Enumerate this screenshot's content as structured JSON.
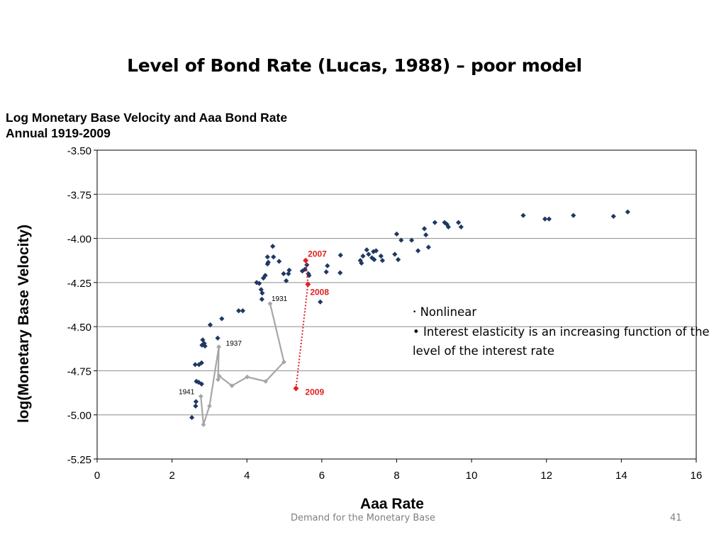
{
  "slide": {
    "title": "Level of Bond Rate (Lucas, 1988) – poor model",
    "footer": "Demand for the Monetary Base",
    "page_number": "41"
  },
  "notes": {
    "items": [
      "Nonlinear",
      "Interest elasticity is an increasing function of the level of the interest rate"
    ]
  },
  "chart_data": {
    "type": "scatter",
    "title_lines": [
      "Log Monetary Base Velocity and  Aaa Bond Rate",
      "Annual 1919-2009"
    ],
    "xlabel": "Aaa Rate",
    "ylabel": "log(Monetary Base Velocity)",
    "xlim": [
      0,
      16
    ],
    "ylim": [
      -5.25,
      -3.5
    ],
    "xticks": [
      "0",
      "2",
      "4",
      "6",
      "8",
      "10",
      "12",
      "14",
      "16"
    ],
    "yticks": [
      "-3.50",
      "-3.75",
      "-4.00",
      "-4.25",
      "-4.50",
      "-4.75",
      "-5.00",
      "-5.25"
    ],
    "grid": true,
    "colors": {
      "main": "#1f3864",
      "highlight": "#e02020",
      "path": "#a6a6a6",
      "grid": "#8c8c8c"
    },
    "series": [
      {
        "marker": "diamond",
        "points": [
          [
            11.38,
            -3.87
          ],
          [
            11.96,
            -3.89
          ],
          [
            12.07,
            -3.89
          ],
          [
            12.72,
            -3.87
          ],
          [
            13.79,
            -3.875
          ],
          [
            14.17,
            -3.85
          ],
          [
            9.02,
            -3.91
          ],
          [
            9.28,
            -3.91
          ],
          [
            9.34,
            -3.92
          ],
          [
            9.38,
            -3.935
          ],
          [
            9.65,
            -3.91
          ],
          [
            9.72,
            -3.935
          ],
          [
            8.0,
            -3.975
          ],
          [
            8.12,
            -4.01
          ],
          [
            8.4,
            -4.01
          ],
          [
            8.74,
            -3.945
          ],
          [
            8.78,
            -3.98
          ],
          [
            8.85,
            -4.05
          ],
          [
            8.57,
            -4.07
          ],
          [
            7.95,
            -4.09
          ],
          [
            8.04,
            -4.12
          ],
          [
            7.2,
            -4.065
          ],
          [
            7.38,
            -4.075
          ],
          [
            7.45,
            -4.07
          ],
          [
            7.1,
            -4.1
          ],
          [
            7.25,
            -4.09
          ],
          [
            7.34,
            -4.11
          ],
          [
            7.4,
            -4.12
          ],
          [
            7.58,
            -4.1
          ],
          [
            7.62,
            -4.125
          ],
          [
            7.03,
            -4.125
          ],
          [
            7.06,
            -4.14
          ],
          [
            6.5,
            -4.095
          ],
          [
            6.49,
            -4.195
          ],
          [
            6.15,
            -4.155
          ],
          [
            6.12,
            -4.19
          ],
          [
            5.96,
            -4.36
          ],
          [
            5.64,
            -4.2
          ],
          [
            5.66,
            -4.21
          ],
          [
            5.6,
            -4.15
          ],
          [
            5.55,
            -4.175
          ],
          [
            5.48,
            -4.185
          ],
          [
            4.69,
            -4.045
          ],
          [
            4.71,
            -4.105
          ],
          [
            4.55,
            -4.105
          ],
          [
            4.57,
            -4.135
          ],
          [
            4.55,
            -4.145
          ],
          [
            4.86,
            -4.13
          ],
          [
            5.13,
            -4.18
          ],
          [
            5.11,
            -4.2
          ],
          [
            4.98,
            -4.2
          ],
          [
            5.05,
            -4.24
          ],
          [
            4.44,
            -4.225
          ],
          [
            4.49,
            -4.21
          ],
          [
            4.33,
            -4.255
          ],
          [
            4.26,
            -4.25
          ],
          [
            4.38,
            -4.29
          ],
          [
            4.41,
            -4.31
          ],
          [
            4.4,
            -4.345
          ],
          [
            3.89,
            -4.41
          ],
          [
            3.78,
            -4.41
          ],
          [
            3.33,
            -4.455
          ],
          [
            3.02,
            -4.49
          ],
          [
            3.22,
            -4.565
          ],
          [
            2.82,
            -4.575
          ],
          [
            2.86,
            -4.595
          ],
          [
            2.8,
            -4.605
          ],
          [
            2.88,
            -4.61
          ],
          [
            2.62,
            -4.715
          ],
          [
            2.72,
            -4.715
          ],
          [
            2.79,
            -4.705
          ],
          [
            2.71,
            -4.815
          ],
          [
            2.65,
            -4.81
          ],
          [
            2.79,
            -4.825
          ],
          [
            2.64,
            -4.925
          ],
          [
            2.63,
            -4.95
          ],
          [
            2.53,
            -5.015
          ]
        ]
      },
      {
        "marker": "diamond",
        "points": [
          [
            4.62,
            -4.37
          ],
          [
            4.99,
            -4.7
          ],
          [
            4.5,
            -4.81
          ],
          [
            4.01,
            -4.785
          ],
          [
            3.6,
            -4.835
          ],
          [
            3.26,
            -4.78
          ],
          [
            3.23,
            -4.8
          ],
          [
            3.25,
            -4.615
          ],
          [
            3.0,
            -4.95
          ],
          [
            2.84,
            -5.055
          ],
          [
            2.77,
            -4.895
          ]
        ]
      },
      {
        "marker": "diamond",
        "points": [
          [
            5.57,
            -4.125
          ],
          [
            5.63,
            -4.26
          ],
          [
            5.31,
            -4.85
          ]
        ]
      }
    ],
    "annotations": [
      {
        "text": "1931",
        "x": 4.62,
        "y": -4.37
      },
      {
        "text": "1937",
        "x": 3.25,
        "y": -4.615
      },
      {
        "text": "1941",
        "x": 2.77,
        "y": -4.895
      },
      {
        "text": "2007",
        "x": 5.57,
        "y": -4.125
      },
      {
        "text": "2008",
        "x": 5.63,
        "y": -4.26
      },
      {
        "text": "2009",
        "x": 5.31,
        "y": -4.85
      }
    ]
  }
}
